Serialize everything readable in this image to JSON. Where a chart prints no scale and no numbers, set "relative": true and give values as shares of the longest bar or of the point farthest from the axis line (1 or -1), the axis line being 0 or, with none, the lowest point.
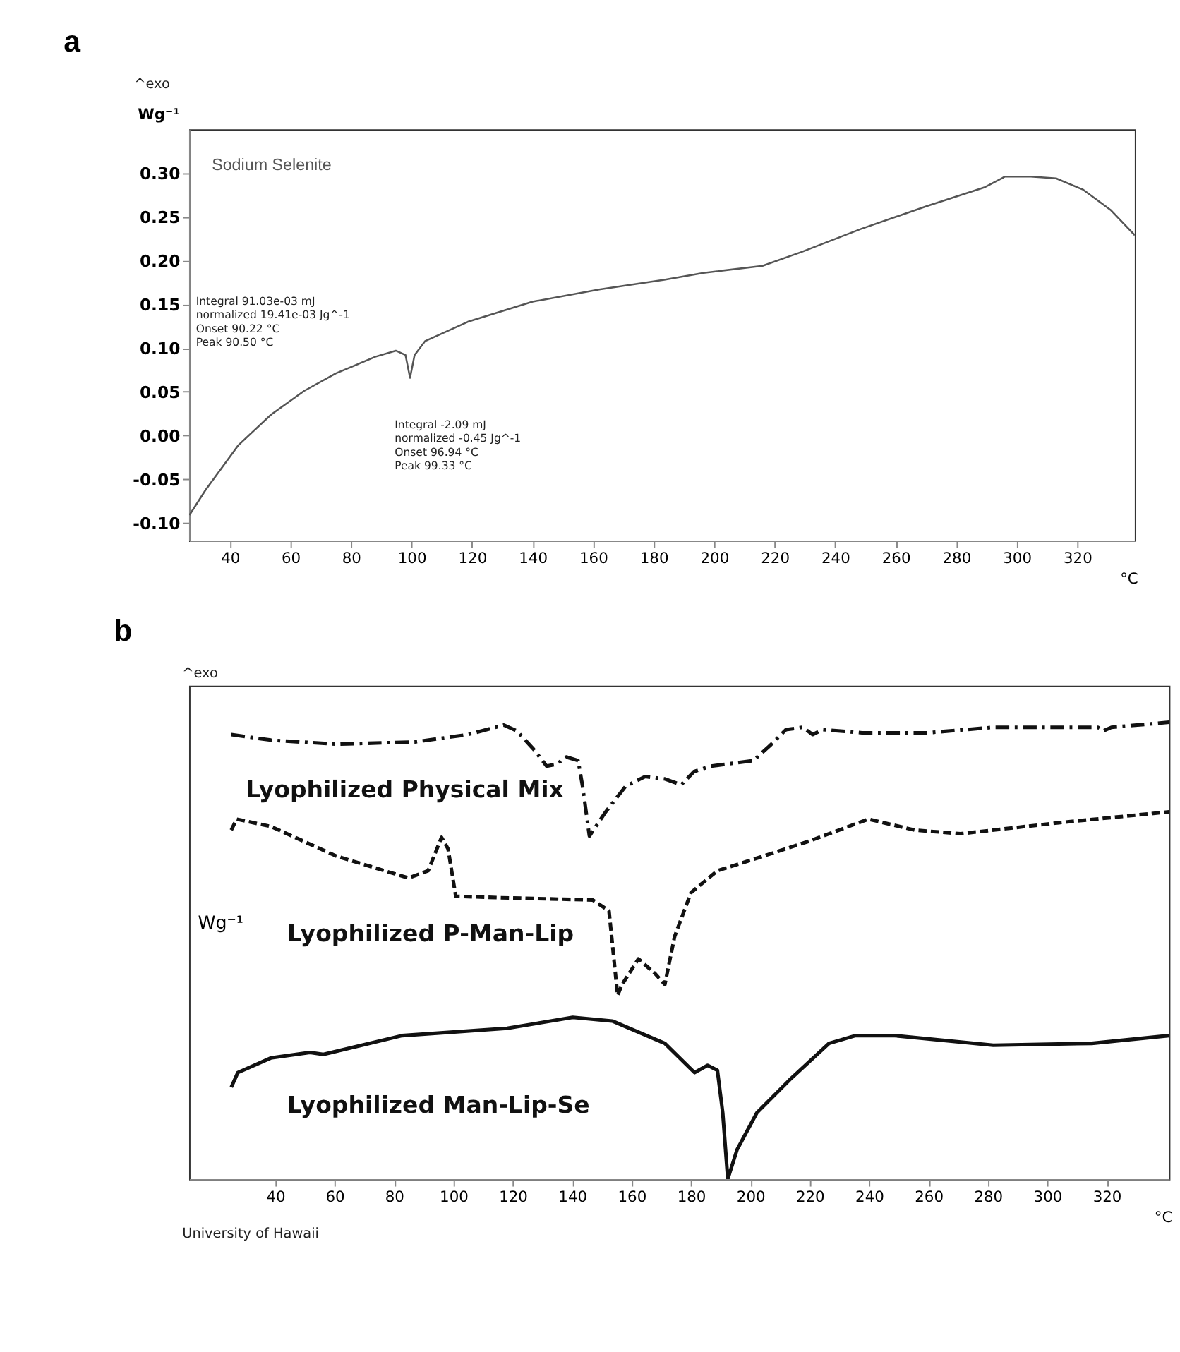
{
  "chart_data": [
    {
      "type": "line",
      "title": "a",
      "ylabel": "Wg⁻¹",
      "xlabel": "°C",
      "legend": false,
      "grid": false,
      "line_style": "solid",
      "xlim": [
        26.5,
        339
      ],
      "xticks": [
        40,
        60,
        80,
        100,
        120,
        140,
        160,
        180,
        200,
        220,
        240,
        260,
        280,
        300,
        320
      ],
      "ylim": [
        -0.12,
        0.35
      ],
      "yticks": [
        {
          "value": -0.1,
          "label": "-0.10"
        },
        {
          "value": -0.05,
          "label": "-0.05"
        },
        {
          "value": 0,
          "label": "0.00"
        },
        {
          "value": 0.05,
          "label": "0.05"
        },
        {
          "value": 0.1,
          "label": "0.10"
        },
        {
          "value": 0.15,
          "label": "0.15"
        },
        {
          "value": 0.2,
          "label": "0.20"
        },
        {
          "value": 0.25,
          "label": "0.25"
        },
        {
          "value": 0.3,
          "label": "0.30"
        }
      ],
      "annotations": [
        "^exo",
        "Integral        91.03e-03 mJ\n  normalized  19.41e-03 Jg^-1\nOnset           90.22 °C\nPeak             90.50 °C",
        "Integral        -2.09 mJ\n  normalized  -0.45 Jg^-1\nOnset           96.94 °C\nPeak             99.33 °C"
      ],
      "series": [
        {
          "name": "Sodium Selenite",
          "color": "#555555",
          "x": [
            26.6,
            32,
            42.8,
            53.6,
            64.5,
            75,
            88,
            94.8,
            98,
            99.5,
            101,
            104.5,
            118.6,
            140,
            162,
            183.5,
            196.5,
            216,
            229,
            248.4,
            270,
            289.5,
            295,
            296,
            304.7,
            313,
            322,
            331,
            339
          ],
          "values": [
            -0.091,
            -0.062,
            -0.011,
            0.024,
            0.051,
            0.071,
            0.09,
            0.097,
            0.092,
            0.066,
            0.092,
            0.108,
            0.13,
            0.153,
            0.167,
            0.178,
            0.186,
            0.194,
            0.21,
            0.236,
            0.262,
            0.284,
            0.294,
            0.296,
            0.296,
            0.294,
            0.281,
            0.258,
            0.229
          ]
        }
      ]
    },
    {
      "type": "line",
      "title": "b",
      "ylabel": "Wg⁻¹",
      "xlabel": "°C",
      "relative": true,
      "legend": false,
      "grid": false,
      "tick_labels": "x",
      "xlim": [
        11,
        341
      ],
      "xticks": [
        40,
        60,
        80,
        100,
        120,
        140,
        160,
        180,
        200,
        220,
        240,
        260,
        280,
        300,
        320
      ],
      "annotations": [
        "^exo",
        "University of Hawaii"
      ],
      "series": [
        {
          "name": "Lyophilized Physical Mix",
          "color": "#111111",
          "line_style": "dashed",
          "x": [
            25.2,
            38.5,
            60.6,
            87,
            104.8,
            117,
            121.4,
            127,
            131.4,
            134.7,
            138,
            142,
            143.5,
            145.8,
            151.3,
            158,
            164.6,
            171.2,
            176.7,
            181,
            186.7,
            201,
            206.6,
            212,
            217.7,
            221,
            224.3,
            237.6,
            259.7,
            281.8,
            317,
            318.8,
            321.6,
            341
          ],
          "values": [
            0.973,
            0.961,
            0.952,
            0.957,
            0.973,
            0.994,
            0.981,
            0.941,
            0.904,
            0.908,
            0.924,
            0.916,
            0.86,
            0.751,
            0.804,
            0.86,
            0.881,
            0.876,
            0.863,
            0.892,
            0.904,
            0.916,
            0.949,
            0.984,
            0.989,
            0.973,
            0.984,
            0.977,
            0.977,
            0.989,
            0.989,
            0.981,
            0.989,
            1.0
          ]
        },
        {
          "name": "Lyophilized P-Man-Lip",
          "color": "#111111",
          "line_style": "dotted",
          "x": [
            25.2,
            27,
            38.5,
            60.6,
            84.9,
            91.5,
            96,
            98.2,
            100.8,
            115.9,
            146.9,
            152.4,
            155.3,
            156.8,
            162.3,
            167.9,
            171.2,
            174.5,
            180,
            188.9,
            204.4,
            219.9,
            239.8,
            255.3,
            270.8,
            303.9,
            341
          ],
          "values": [
            0.764,
            0.788,
            0.772,
            0.707,
            0.659,
            0.675,
            0.748,
            0.723,
            0.619,
            0.616,
            0.611,
            0.587,
            0.402,
            0.426,
            0.482,
            0.45,
            0.426,
            0.531,
            0.627,
            0.675,
            0.707,
            0.74,
            0.788,
            0.764,
            0.756,
            0.78,
            0.804
          ]
        },
        {
          "name": "Lyophilized Man-Lip-Se",
          "color": "#111111",
          "line_style": "solid",
          "x": [
            25.2,
            27.4,
            38.5,
            51.7,
            56.2,
            82.7,
            118.1,
            140.2,
            153.5,
            171.2,
            181.2,
            185.6,
            188.9,
            190.7,
            192.4,
            195.5,
            202.2,
            213.2,
            226.5,
            235.4,
            248.6,
            281.8,
            315,
            341
          ],
          "values": [
            0.201,
            0.233,
            0.265,
            0.277,
            0.273,
            0.314,
            0.33,
            0.354,
            0.346,
            0.297,
            0.233,
            0.249,
            0.238,
            0.145,
            0.0,
            0.064,
            0.145,
            0.217,
            0.297,
            0.314,
            0.314,
            0.293,
            0.297,
            0.314
          ]
        }
      ]
    }
  ]
}
